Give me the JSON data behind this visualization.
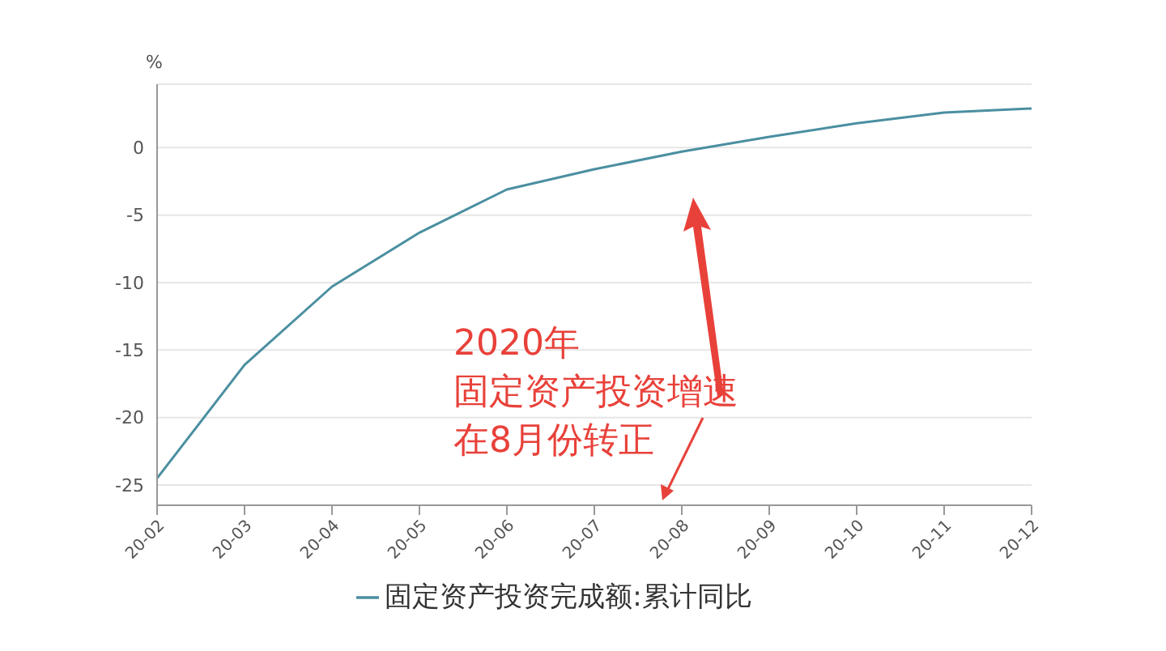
{
  "chart_data": {
    "type": "line",
    "ylabel": "%",
    "categories": [
      "20-02",
      "20-03",
      "20-04",
      "20-05",
      "20-06",
      "20-07",
      "20-08",
      "20-09",
      "20-10",
      "20-11",
      "20-12"
    ],
    "series": [
      {
        "name": "固定资产投资完成额:累计同比",
        "color": "#4a8fa0",
        "values": [
          -24.5,
          -16.1,
          -10.3,
          -6.3,
          -3.1,
          -1.6,
          -0.3,
          0.8,
          1.8,
          2.6,
          2.9
        ]
      }
    ],
    "ylim": [
      -26.5,
      4.7
    ],
    "yticks": [
      -25,
      -20,
      -15,
      -10,
      -5,
      0
    ],
    "grid": "y",
    "legend": "bottom",
    "marker": "none",
    "annotations": [
      "2020年",
      "固定资产投资增速",
      "在8月份转正"
    ]
  }
}
